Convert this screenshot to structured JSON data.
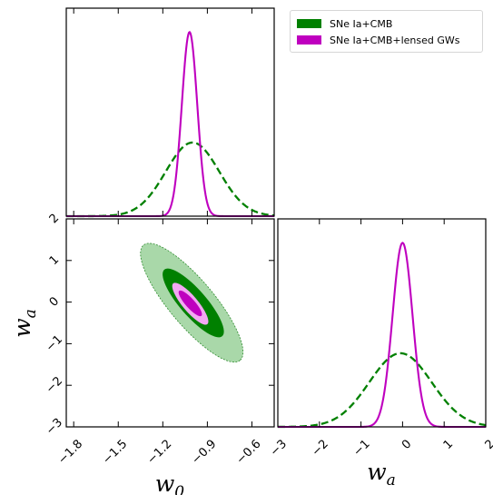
{
  "chart_data": [
    {
      "type": "line",
      "panel": "marginal-w0",
      "x_domain": [
        -1.85,
        -0.45
      ],
      "series": [
        {
          "name": "SNe Ia+CMB",
          "style": "dashed",
          "color": "#008000",
          "mean": -1.0,
          "sigma": 0.18,
          "relative_peak": 0.4
        },
        {
          "name": "SNe Ia+CMB+lensed GWs",
          "style": "solid",
          "color": "#bf00bf",
          "mean": -1.02,
          "sigma": 0.052,
          "relative_peak": 1.0
        }
      ]
    },
    {
      "type": "contour",
      "panel": "joint-w0-wa",
      "xlabel": "w",
      "xlabel_sub": "0",
      "ylabel": "w",
      "ylabel_sub": "a",
      "xlim": [
        -1.85,
        -0.45
      ],
      "ylim": [
        -3,
        2
      ],
      "xticks": [
        "−1.8",
        "−1.5",
        "−1.2",
        "−0.9",
        "−0.6"
      ],
      "xtick_values": [
        -1.8,
        -1.5,
        -1.2,
        -0.9,
        -0.6
      ],
      "yticks": [
        "−3",
        "−2",
        "−1",
        "0",
        "1",
        "2"
      ],
      "ytick_values": [
        -3,
        -2,
        -1,
        0,
        1,
        2
      ],
      "contours": [
        {
          "series": "SNe Ia+CMB",
          "level": "95%",
          "color": "#a9d8a9",
          "center": [
            -0.99,
            -0.2
          ],
          "endpoints": [
            [
              -1.33,
              1.37
            ],
            [
              -0.68,
              -1.4
            ]
          ],
          "half_width": 0.6
        },
        {
          "series": "SNe Ia+CMB",
          "level": "68%",
          "color": "#008000",
          "center": [
            -1.0,
            -0.14
          ],
          "endpoints": [
            [
              -1.19,
              0.78
            ],
            [
              -0.8,
              -0.82
            ]
          ],
          "half_width": 0.6
        },
        {
          "series": "SNe Ia+CMB+lensed GWs",
          "level": "95%",
          "color": "#f2a8f2",
          "center": [
            -1.02,
            -0.06
          ],
          "endpoints": [
            [
              -1.13,
              0.45
            ],
            [
              -0.9,
              -0.53
            ]
          ],
          "half_width": 0.58
        },
        {
          "series": "SNe Ia+CMB+lensed GWs",
          "level": "68%",
          "color": "#bf00bf",
          "center": [
            -1.02,
            -0.04
          ],
          "endpoints": [
            [
              -1.09,
              0.27
            ],
            [
              -0.94,
              -0.33
            ]
          ],
          "half_width": 0.55
        }
      ]
    },
    {
      "type": "line",
      "panel": "marginal-wa",
      "xlabel": "w",
      "xlabel_sub": "a",
      "xlim": [
        -3,
        2
      ],
      "xticks": [
        "−3",
        "−2",
        "−1",
        "0",
        "1",
        "2"
      ],
      "xtick_values": [
        -3,
        -2,
        -1,
        0,
        1,
        2
      ],
      "series": [
        {
          "name": "SNe Ia+CMB",
          "style": "dashed",
          "color": "#008000",
          "mean": -0.05,
          "sigma": 0.75,
          "relative_peak": 0.4
        },
        {
          "name": "SNe Ia+CMB+lensed GWs",
          "style": "solid",
          "color": "#bf00bf",
          "mean": 0.0,
          "sigma": 0.24,
          "relative_peak": 1.0
        }
      ]
    }
  ],
  "legend": {
    "placement": "top-right",
    "entries": [
      {
        "label": "SNe Ia+CMB",
        "color": "#008000"
      },
      {
        "label": "SNe Ia+CMB+lensed GWs",
        "color": "#bf00bf"
      }
    ]
  }
}
